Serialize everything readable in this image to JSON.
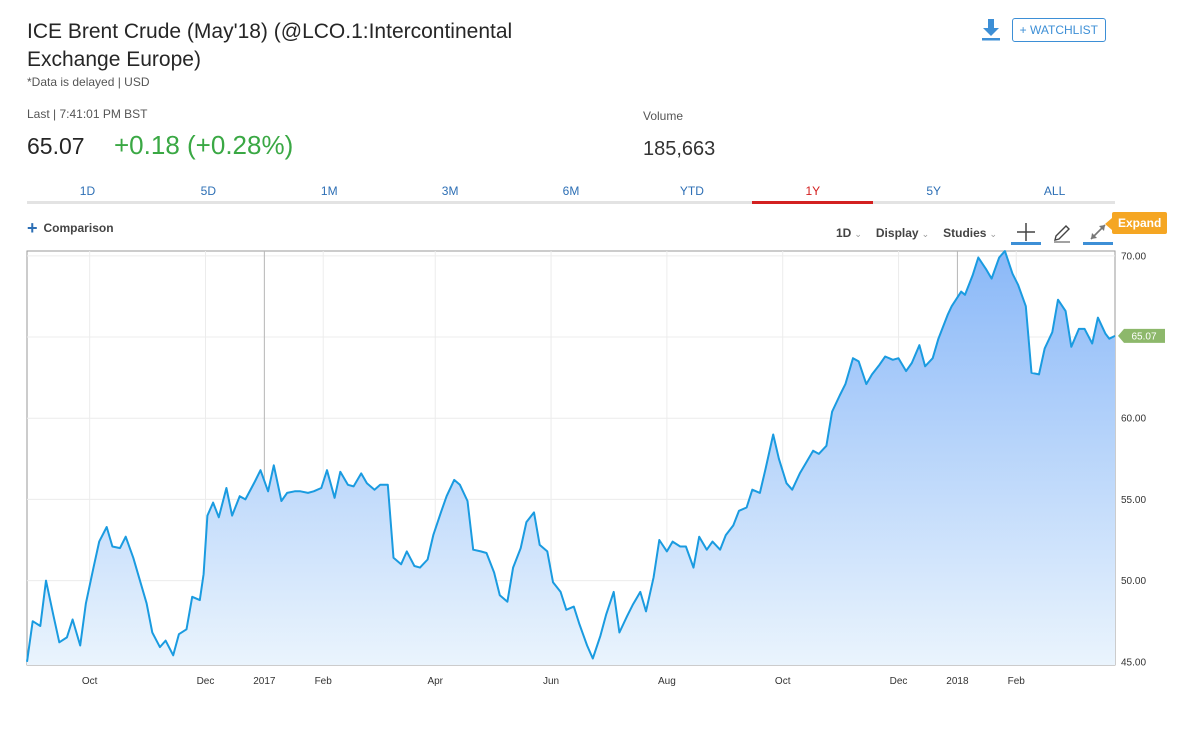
{
  "header": {
    "title": "ICE Brent Crude (May'18) (@LCO.1:Intercontinental Exchange Europe)",
    "delayed_note": "*Data is delayed | USD",
    "watchlist_label": "+ WATCHLIST",
    "download_icon": "download-icon"
  },
  "quote": {
    "last_label": "Last | 7:41:01 PM BST",
    "price": "65.07",
    "change": "+0.18 (+0.28%)",
    "change_color": "#3aa844",
    "volume_label": "Volume",
    "volume": "185,663"
  },
  "ranges": [
    {
      "label": "1D",
      "active": false
    },
    {
      "label": "5D",
      "active": false
    },
    {
      "label": "1M",
      "active": false
    },
    {
      "label": "3M",
      "active": false
    },
    {
      "label": "6M",
      "active": false
    },
    {
      "label": "YTD",
      "active": false
    },
    {
      "label": "1Y",
      "active": true
    },
    {
      "label": "5Y",
      "active": false
    },
    {
      "label": "ALL",
      "active": false
    }
  ],
  "toolbar": {
    "comparison_label": "Comparison",
    "interval_label": "1D",
    "display_label": "Display",
    "studies_label": "Studies",
    "expand_label": "Expand",
    "tools": [
      "crosshair-icon",
      "pencil-icon",
      "expand-arrows-icon"
    ]
  },
  "colors": {
    "line": "#1a9be0",
    "area_top": "#8ab8f8",
    "area_bottom": "#eaf4fd",
    "price_badge": "#8db86b",
    "accent": "#3d8fd6",
    "active_tab": "#d32020"
  },
  "chart_data": {
    "type": "area",
    "title": "",
    "xlabel": "",
    "ylabel": "",
    "ylim": [
      44.8,
      70.3
    ],
    "y_ticks": [
      "70.00",
      "60.00",
      "55.00",
      "50.00",
      "45.00"
    ],
    "y_gridlines": [
      45,
      50,
      55,
      60,
      65,
      70
    ],
    "x_ticks": [
      "Oct",
      "Dec",
      "2017",
      "Feb",
      "Apr",
      "Jun",
      "Aug",
      "Oct",
      "Dec",
      "2018",
      "Feb"
    ],
    "x_tick_dates": [
      "2016-10-01",
      "2016-12-01",
      "2017-01-01",
      "2017-02-01",
      "2017-04-01",
      "2017-06-01",
      "2017-08-01",
      "2017-10-01",
      "2017-12-01",
      "2018-01-01",
      "2018-02-01"
    ],
    "x_range": [
      "2016-08-29",
      "2018-03-25"
    ],
    "last_value_label": "65.07",
    "grid": true,
    "series": [
      {
        "values": [
          [
            "2016-08-29",
            45.0
          ],
          [
            "2016-09-01",
            47.5
          ],
          [
            "2016-09-05",
            47.2
          ],
          [
            "2016-09-08",
            50.0
          ],
          [
            "2016-09-12",
            47.8
          ],
          [
            "2016-09-15",
            46.2
          ],
          [
            "2016-09-19",
            46.5
          ],
          [
            "2016-09-22",
            47.6
          ],
          [
            "2016-09-26",
            46.0
          ],
          [
            "2016-09-29",
            48.6
          ],
          [
            "2016-10-03",
            50.8
          ],
          [
            "2016-10-06",
            52.4
          ],
          [
            "2016-10-10",
            53.3
          ],
          [
            "2016-10-13",
            52.1
          ],
          [
            "2016-10-17",
            52.0
          ],
          [
            "2016-10-20",
            52.7
          ],
          [
            "2016-10-24",
            51.4
          ],
          [
            "2016-10-27",
            50.2
          ],
          [
            "2016-10-31",
            48.6
          ],
          [
            "2016-11-03",
            46.8
          ],
          [
            "2016-11-07",
            45.9
          ],
          [
            "2016-11-10",
            46.3
          ],
          [
            "2016-11-14",
            45.4
          ],
          [
            "2016-11-17",
            46.7
          ],
          [
            "2016-11-21",
            47.0
          ],
          [
            "2016-11-24",
            49.0
          ],
          [
            "2016-11-28",
            48.8
          ],
          [
            "2016-11-30",
            50.4
          ],
          [
            "2016-12-02",
            54.0
          ],
          [
            "2016-12-05",
            54.8
          ],
          [
            "2016-12-08",
            53.9
          ],
          [
            "2016-12-12",
            55.7
          ],
          [
            "2016-12-15",
            54.0
          ],
          [
            "2016-12-19",
            55.2
          ],
          [
            "2016-12-22",
            55.0
          ],
          [
            "2016-12-27",
            56.1
          ],
          [
            "2016-12-30",
            56.8
          ],
          [
            "2017-01-03",
            55.5
          ],
          [
            "2017-01-06",
            57.1
          ],
          [
            "2017-01-10",
            54.9
          ],
          [
            "2017-01-13",
            55.4
          ],
          [
            "2017-01-17",
            55.5
          ],
          [
            "2017-01-20",
            55.5
          ],
          [
            "2017-01-24",
            55.4
          ],
          [
            "2017-01-27",
            55.5
          ],
          [
            "2017-01-31",
            55.7
          ],
          [
            "2017-02-03",
            56.8
          ],
          [
            "2017-02-07",
            55.1
          ],
          [
            "2017-02-10",
            56.7
          ],
          [
            "2017-02-14",
            55.9
          ],
          [
            "2017-02-17",
            55.8
          ],
          [
            "2017-02-21",
            56.6
          ],
          [
            "2017-02-24",
            56.0
          ],
          [
            "2017-02-28",
            55.6
          ],
          [
            "2017-03-03",
            55.9
          ],
          [
            "2017-03-07",
            55.9
          ],
          [
            "2017-03-10",
            51.4
          ],
          [
            "2017-03-14",
            51.0
          ],
          [
            "2017-03-17",
            51.8
          ],
          [
            "2017-03-21",
            50.9
          ],
          [
            "2017-03-24",
            50.8
          ],
          [
            "2017-03-28",
            51.3
          ],
          [
            "2017-03-31",
            52.8
          ],
          [
            "2017-04-04",
            54.2
          ],
          [
            "2017-04-07",
            55.2
          ],
          [
            "2017-04-11",
            56.2
          ],
          [
            "2017-04-14",
            55.9
          ],
          [
            "2017-04-18",
            54.9
          ],
          [
            "2017-04-21",
            51.9
          ],
          [
            "2017-04-25",
            51.8
          ],
          [
            "2017-04-28",
            51.7
          ],
          [
            "2017-05-02",
            50.5
          ],
          [
            "2017-05-05",
            49.1
          ],
          [
            "2017-05-09",
            48.7
          ],
          [
            "2017-05-12",
            50.8
          ],
          [
            "2017-05-16",
            52.0
          ],
          [
            "2017-05-19",
            53.6
          ],
          [
            "2017-05-23",
            54.2
          ],
          [
            "2017-05-26",
            52.2
          ],
          [
            "2017-05-30",
            51.8
          ],
          [
            "2017-06-02",
            49.9
          ],
          [
            "2017-06-06",
            49.3
          ],
          [
            "2017-06-09",
            48.2
          ],
          [
            "2017-06-13",
            48.4
          ],
          [
            "2017-06-16",
            47.3
          ],
          [
            "2017-06-20",
            46.0
          ],
          [
            "2017-06-23",
            45.2
          ],
          [
            "2017-06-27",
            46.6
          ],
          [
            "2017-06-30",
            47.9
          ],
          [
            "2017-07-04",
            49.3
          ],
          [
            "2017-07-07",
            46.8
          ],
          [
            "2017-07-11",
            47.8
          ],
          [
            "2017-07-14",
            48.5
          ],
          [
            "2017-07-18",
            49.3
          ],
          [
            "2017-07-21",
            48.1
          ],
          [
            "2017-07-25",
            50.2
          ],
          [
            "2017-07-28",
            52.5
          ],
          [
            "2017-08-01",
            51.8
          ],
          [
            "2017-08-04",
            52.4
          ],
          [
            "2017-08-08",
            52.1
          ],
          [
            "2017-08-11",
            52.1
          ],
          [
            "2017-08-15",
            50.8
          ],
          [
            "2017-08-18",
            52.7
          ],
          [
            "2017-08-22",
            51.9
          ],
          [
            "2017-08-25",
            52.4
          ],
          [
            "2017-08-29",
            51.9
          ],
          [
            "2017-09-01",
            52.8
          ],
          [
            "2017-09-05",
            53.4
          ],
          [
            "2017-09-08",
            54.3
          ],
          [
            "2017-09-12",
            54.5
          ],
          [
            "2017-09-15",
            55.6
          ],
          [
            "2017-09-19",
            55.4
          ],
          [
            "2017-09-22",
            56.9
          ],
          [
            "2017-09-26",
            59.0
          ],
          [
            "2017-09-29",
            57.5
          ],
          [
            "2017-10-03",
            56.0
          ],
          [
            "2017-10-06",
            55.6
          ],
          [
            "2017-10-10",
            56.6
          ],
          [
            "2017-10-13",
            57.2
          ],
          [
            "2017-10-17",
            58.0
          ],
          [
            "2017-10-20",
            57.8
          ],
          [
            "2017-10-24",
            58.3
          ],
          [
            "2017-10-27",
            60.4
          ],
          [
            "2017-10-31",
            61.4
          ],
          [
            "2017-11-03",
            62.1
          ],
          [
            "2017-11-07",
            63.7
          ],
          [
            "2017-11-10",
            63.5
          ],
          [
            "2017-11-14",
            62.1
          ],
          [
            "2017-11-17",
            62.7
          ],
          [
            "2017-11-21",
            63.3
          ],
          [
            "2017-11-24",
            63.8
          ],
          [
            "2017-11-28",
            63.6
          ],
          [
            "2017-12-01",
            63.7
          ],
          [
            "2017-12-05",
            62.9
          ],
          [
            "2017-12-08",
            63.4
          ],
          [
            "2017-12-12",
            64.5
          ],
          [
            "2017-12-15",
            63.2
          ],
          [
            "2017-12-19",
            63.7
          ],
          [
            "2017-12-22",
            64.9
          ],
          [
            "2017-12-27",
            66.4
          ],
          [
            "2017-12-29",
            66.9
          ],
          [
            "2018-01-03",
            67.8
          ],
          [
            "2018-01-05",
            67.6
          ],
          [
            "2018-01-09",
            68.8
          ],
          [
            "2018-01-12",
            69.9
          ],
          [
            "2018-01-16",
            69.2
          ],
          [
            "2018-01-19",
            68.6
          ],
          [
            "2018-01-23",
            69.9
          ],
          [
            "2018-01-26",
            70.3
          ],
          [
            "2018-01-30",
            68.9
          ],
          [
            "2018-02-02",
            68.2
          ],
          [
            "2018-02-06",
            66.9
          ],
          [
            "2018-02-09",
            62.8
          ],
          [
            "2018-02-13",
            62.7
          ],
          [
            "2018-02-16",
            64.3
          ],
          [
            "2018-02-20",
            65.3
          ],
          [
            "2018-02-23",
            67.3
          ],
          [
            "2018-02-27",
            66.6
          ],
          [
            "2018-03-02",
            64.4
          ],
          [
            "2018-03-06",
            65.5
          ],
          [
            "2018-03-09",
            65.5
          ],
          [
            "2018-03-13",
            64.6
          ],
          [
            "2018-03-16",
            66.2
          ],
          [
            "2018-03-20",
            65.2
          ],
          [
            "2018-03-22",
            64.9
          ],
          [
            "2018-03-25",
            65.07
          ]
        ]
      }
    ]
  }
}
